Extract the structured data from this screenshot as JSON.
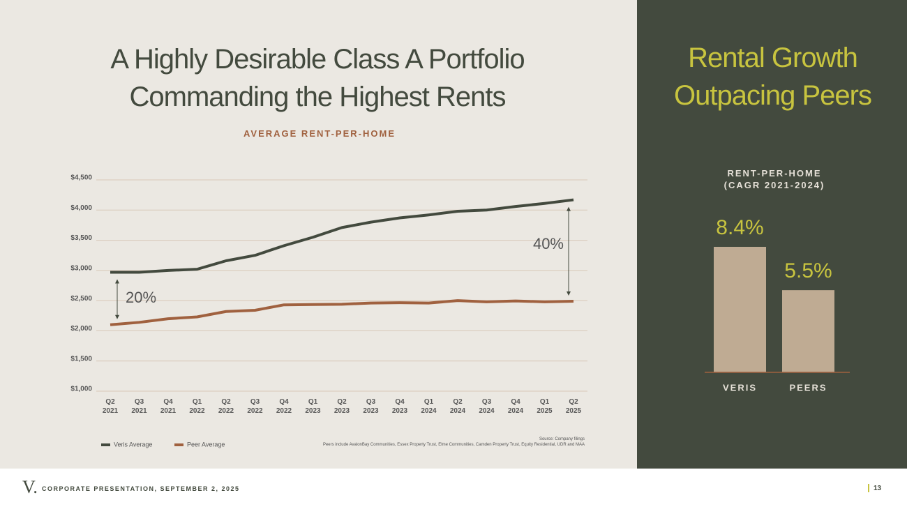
{
  "header": {
    "title": "A Highly Desirable Class A Portfolio Commanding the Highest Rents",
    "panel_title": "Rental Growth Outpacing Peers"
  },
  "chart_data": [
    {
      "type": "line",
      "title": "AVERAGE RENT-PER-HOME",
      "categories": [
        "Q2 2021",
        "Q3 2021",
        "Q4 2021",
        "Q1 2022",
        "Q2 2022",
        "Q3 2022",
        "Q4 2022",
        "Q1 2023",
        "Q2 2023",
        "Q3 2023",
        "Q4 2023",
        "Q1 2024",
        "Q2 2024",
        "Q3 2024",
        "Q4 2024",
        "Q1 2025",
        "Q2 2025"
      ],
      "series": [
        {
          "name": "Veris Average",
          "color": "#434a3e",
          "values": [
            2970,
            2970,
            3000,
            3020,
            3160,
            3250,
            3410,
            3550,
            3710,
            3800,
            3870,
            3920,
            3980,
            4000,
            4060,
            4110,
            4170
          ]
        },
        {
          "name": "Peer Average",
          "color": "#a0613f",
          "values": [
            2100,
            2140,
            2200,
            2230,
            2320,
            2340,
            2430,
            2435,
            2440,
            2460,
            2465,
            2460,
            2500,
            2480,
            2495,
            2480,
            2490
          ]
        }
      ],
      "ylim": [
        1000,
        4500
      ],
      "yticks": [
        {
          "value": 1000,
          "label": "$1,000"
        },
        {
          "value": 1500,
          "label": "$1,500"
        },
        {
          "value": 2000,
          "label": "$2,000"
        },
        {
          "value": 2500,
          "label": "$2,500"
        },
        {
          "value": 3000,
          "label": "$3,000"
        },
        {
          "value": 3500,
          "label": "$3,500"
        },
        {
          "value": 4000,
          "label": "$4,000"
        },
        {
          "value": 4500,
          "label": "$4,500"
        }
      ],
      "grid": true,
      "annotations": [
        {
          "text": "20%"
        },
        {
          "text": "40%"
        }
      ],
      "source": "Source: Company filings",
      "note": "Peers include AvalonBay Communities, Essex Property Trust, Elme Communities, Camden Property Trust, Equity Residential, UDR and MAA"
    },
    {
      "type": "bar",
      "title": "RENT-PER-HOME (CAGR 2021-2024)",
      "categories": [
        "VERIS",
        "PEERS"
      ],
      "values": [
        8.4,
        5.5
      ],
      "value_labels": [
        "8.4%",
        "5.5%"
      ],
      "color": "#bfab93"
    }
  ],
  "footer": {
    "logo": "V.",
    "text": "CORPORATE PRESENTATION, SEPTEMBER 2, 2025",
    "page": "13"
  }
}
